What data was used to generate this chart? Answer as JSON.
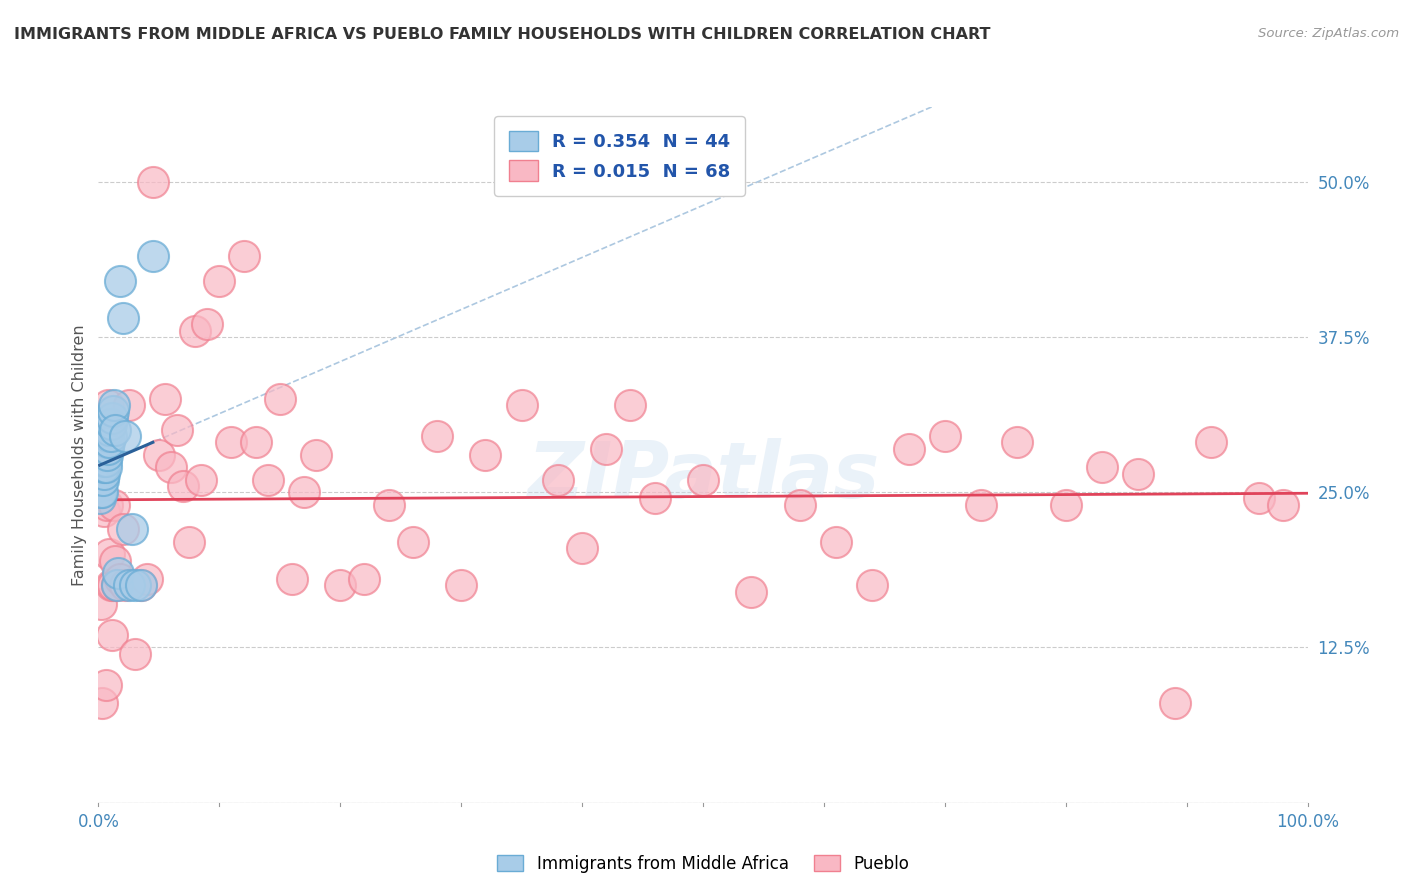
{
  "title": "IMMIGRANTS FROM MIDDLE AFRICA VS PUEBLO FAMILY HOUSEHOLDS WITH CHILDREN CORRELATION CHART",
  "source": "Source: ZipAtlas.com",
  "ylabel": "Family Households with Children",
  "ytick_values": [
    0.0,
    0.125,
    0.25,
    0.375,
    0.5
  ],
  "ytick_labels": [
    "0.0%",
    "12.5%",
    "25.0%",
    "37.5%",
    "50.0%"
  ],
  "xmin": 0.0,
  "xmax": 1.0,
  "ymin": 0.0,
  "ymax": 0.56,
  "blue_R": "0.354",
  "blue_N": 44,
  "pink_R": "0.015",
  "pink_N": 68,
  "blue_marker_color": "#a8cce8",
  "blue_edge_color": "#6aacd5",
  "pink_marker_color": "#f9b8c4",
  "pink_edge_color": "#f08090",
  "trendline_blue_color": "#2a6099",
  "trendline_blue_dash_color": "#adc8e0",
  "trendline_pink_color": "#e0435a",
  "legend_label_blue": "Immigrants from Middle Africa",
  "legend_label_pink": "Pueblo",
  "watermark": "ZIPatlas",
  "blue_x": [
    0.001,
    0.001,
    0.001,
    0.002,
    0.002,
    0.002,
    0.002,
    0.003,
    0.003,
    0.003,
    0.003,
    0.004,
    0.004,
    0.004,
    0.004,
    0.005,
    0.005,
    0.005,
    0.005,
    0.006,
    0.006,
    0.006,
    0.007,
    0.007,
    0.008,
    0.008,
    0.009,
    0.009,
    0.01,
    0.01,
    0.011,
    0.012,
    0.013,
    0.014,
    0.015,
    0.016,
    0.018,
    0.02,
    0.022,
    0.025,
    0.028,
    0.03,
    0.035,
    0.045
  ],
  "blue_y": [
    0.255,
    0.245,
    0.26,
    0.25,
    0.265,
    0.27,
    0.275,
    0.26,
    0.27,
    0.28,
    0.25,
    0.26,
    0.275,
    0.27,
    0.28,
    0.265,
    0.27,
    0.275,
    0.28,
    0.275,
    0.27,
    0.29,
    0.28,
    0.29,
    0.285,
    0.295,
    0.29,
    0.3,
    0.295,
    0.305,
    0.31,
    0.315,
    0.32,
    0.3,
    0.175,
    0.185,
    0.42,
    0.39,
    0.295,
    0.175,
    0.22,
    0.175,
    0.175,
    0.44
  ],
  "pink_x": [
    0.002,
    0.003,
    0.005,
    0.006,
    0.007,
    0.008,
    0.009,
    0.01,
    0.011,
    0.012,
    0.013,
    0.014,
    0.015,
    0.018,
    0.02,
    0.022,
    0.025,
    0.03,
    0.035,
    0.04,
    0.045,
    0.05,
    0.055,
    0.06,
    0.065,
    0.07,
    0.075,
    0.08,
    0.085,
    0.09,
    0.1,
    0.11,
    0.12,
    0.13,
    0.14,
    0.15,
    0.16,
    0.17,
    0.18,
    0.2,
    0.22,
    0.24,
    0.26,
    0.28,
    0.3,
    0.32,
    0.35,
    0.38,
    0.4,
    0.42,
    0.44,
    0.46,
    0.5,
    0.54,
    0.58,
    0.61,
    0.64,
    0.67,
    0.7,
    0.73,
    0.76,
    0.8,
    0.83,
    0.86,
    0.89,
    0.92,
    0.96,
    0.98
  ],
  "pink_y": [
    0.16,
    0.08,
    0.235,
    0.095,
    0.24,
    0.32,
    0.2,
    0.175,
    0.135,
    0.175,
    0.24,
    0.195,
    0.175,
    0.18,
    0.22,
    0.175,
    0.32,
    0.12,
    0.175,
    0.18,
    0.5,
    0.28,
    0.325,
    0.27,
    0.3,
    0.255,
    0.21,
    0.38,
    0.26,
    0.385,
    0.42,
    0.29,
    0.44,
    0.29,
    0.26,
    0.325,
    0.18,
    0.25,
    0.28,
    0.175,
    0.18,
    0.24,
    0.21,
    0.295,
    0.175,
    0.28,
    0.32,
    0.26,
    0.205,
    0.285,
    0.32,
    0.245,
    0.26,
    0.17,
    0.24,
    0.21,
    0.175,
    0.285,
    0.295,
    0.24,
    0.29,
    0.24,
    0.27,
    0.265,
    0.08,
    0.29,
    0.245,
    0.24
  ]
}
